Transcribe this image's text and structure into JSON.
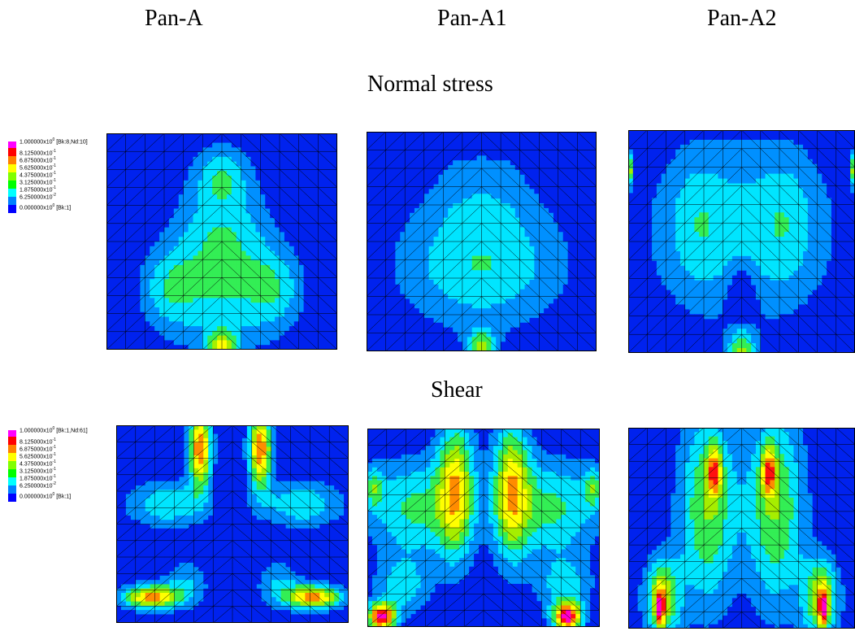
{
  "columns": [
    "Pan-A",
    "Pan-A1",
    "Pan-A2"
  ],
  "rows": [
    {
      "title": "Normal stress"
    },
    {
      "title": "Shear"
    }
  ],
  "legends": [
    {
      "top": {
        "mant": "1.000000x10",
        "exp": "0",
        "suffix": " [Bk:8,Nd:10]"
      },
      "bottom": {
        "mant": "0.000000x10",
        "exp": "0",
        "suffix": " [Bk:1]"
      },
      "levels": [
        {
          "mant": "8.125000x10",
          "exp": "-1"
        },
        {
          "mant": "6.875000x10",
          "exp": "-1"
        },
        {
          "mant": "5.625000x10",
          "exp": "-1"
        },
        {
          "mant": "4.375000x10",
          "exp": "-1"
        },
        {
          "mant": "3.125000x10",
          "exp": "-1"
        },
        {
          "mant": "1.875000x10",
          "exp": "-1"
        },
        {
          "mant": "6.250000x10",
          "exp": "-2"
        }
      ]
    },
    {
      "top": {
        "mant": "1.000000x10",
        "exp": "0",
        "suffix": " [Bk:1,Nd:61]"
      },
      "bottom": {
        "mant": "0.000000x10",
        "exp": "0",
        "suffix": " [Bk:1]"
      },
      "levels": [
        {
          "mant": "8.125000x10",
          "exp": "-1"
        },
        {
          "mant": "6.875000x10",
          "exp": "-1"
        },
        {
          "mant": "5.625000x10",
          "exp": "-1"
        },
        {
          "mant": "4.375000x10",
          "exp": "-1"
        },
        {
          "mant": "3.125000x10",
          "exp": "-1"
        },
        {
          "mant": "1.875000x10",
          "exp": "-1"
        },
        {
          "mant": "6.250000x10",
          "exp": "-2"
        }
      ]
    }
  ],
  "colors": {
    "scale": [
      "#ff00ff",
      "#ff0000",
      "#ff8000",
      "#ffff00",
      "#80ff00",
      "#00ff00",
      "#00ffff",
      "#0080ff",
      "#0000ff"
    ],
    "contour": [
      "#0022ee",
      "#0090ff",
      "#00e5ff",
      "#33ee55",
      "#a6ee00",
      "#ffff00",
      "#ff8c00",
      "#ff1010",
      "#ff00cc"
    ],
    "mesh": "#000000"
  }
}
